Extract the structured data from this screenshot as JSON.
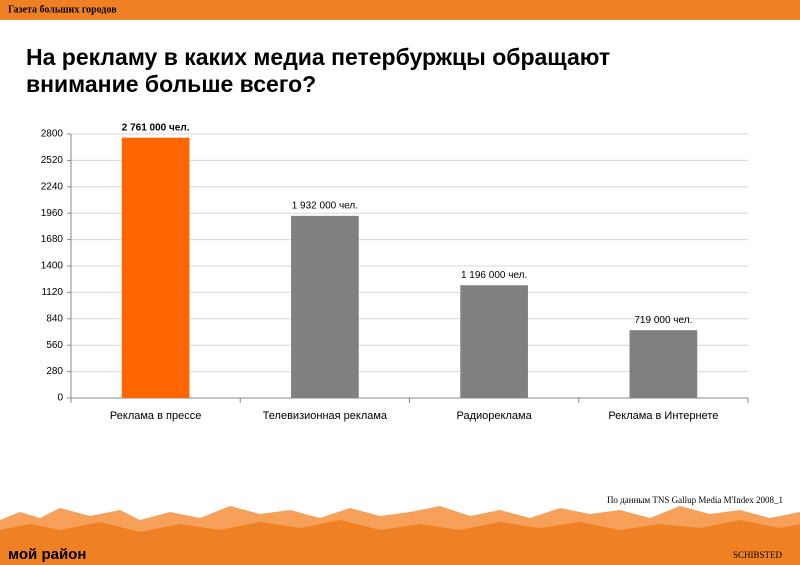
{
  "header": {
    "brand": "Газета больших городов"
  },
  "chart_data": {
    "type": "bar",
    "title": "На рекламу в каких медиа петербуржцы обращают внимание больше всего?",
    "categories": [
      "Реклама в прессе",
      "Телевизионная реклама",
      "Радиореклама",
      "Реклама в Интернете"
    ],
    "values": [
      2761,
      1932,
      1196,
      719
    ],
    "value_labels": [
      "2 761 000 чел.",
      "1 932 000 чел.",
      "1 196 000 чел.",
      "719 000 чел."
    ],
    "colors": [
      "#ff6600",
      "#808080",
      "#808080",
      "#808080"
    ],
    "ylim": [
      0,
      2800
    ],
    "yticks": [
      0,
      280,
      560,
      840,
      1120,
      1400,
      1680,
      1960,
      2240,
      2520,
      2800
    ],
    "grid": true
  },
  "footer": {
    "source": "По данным TNS Gallup Media M'Index 2008_1",
    "logo": "мой район",
    "partner": "SCHIBSTED"
  }
}
